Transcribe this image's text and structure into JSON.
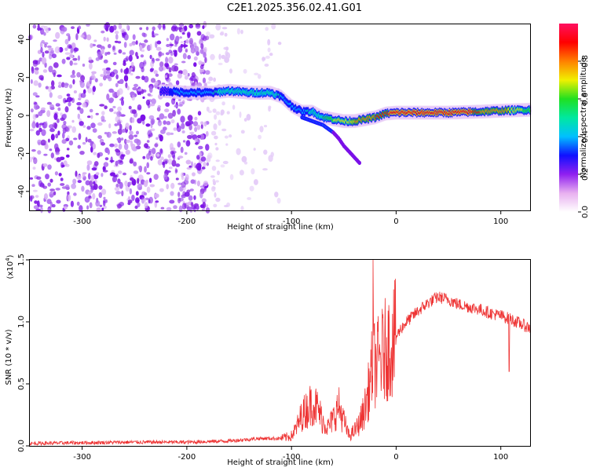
{
  "title": "C2E1.2025.356.02.41.G01",
  "chart_data": [
    {
      "type": "heatmap",
      "name": "spectrogram",
      "xlabel": "Height of straight line (km)",
      "ylabel": "Frequency (Hz)",
      "xlim": [
        -350,
        128
      ],
      "ylim": [
        -50,
        48
      ],
      "xticks": [
        -300,
        -200,
        -100,
        0,
        100
      ],
      "xtick_labels": [
        "-300",
        "-200",
        "-100",
        "0",
        "100"
      ],
      "yticks": [
        -40,
        -20,
        0,
        20,
        40
      ],
      "ytick_labels": [
        "-40",
        "-20",
        "0",
        "20",
        "40"
      ],
      "colorbar": {
        "label": "Normalized spectral amplitude",
        "range": [
          0,
          1
        ],
        "ticks": [
          0.0,
          0.2,
          0.4,
          0.6,
          0.8
        ],
        "tick_labels": [
          "0.0",
          "0.2",
          "0.4",
          "0.6",
          "0.8"
        ],
        "colors": [
          "#ffffff",
          "#e8b0f0",
          "#9020f0",
          "#1010ff",
          "#00c0ff",
          "#00e8a0",
          "#20e020",
          "#f0f000",
          "#ff8000",
          "#ff0000",
          "#ff1060"
        ]
      },
      "signal_track": {
        "x": [
          -225,
          -200,
          -175,
          -160,
          -140,
          -120,
          -110,
          -100,
          -90,
          -80,
          -70,
          -60,
          -50,
          -40,
          -30,
          -20,
          -10,
          0,
          20,
          50,
          80,
          100,
          128
        ],
        "frequency": [
          13,
          12,
          12,
          13,
          12,
          12,
          10,
          5,
          2,
          2,
          -1,
          -2,
          -3,
          -3,
          -2,
          -1,
          1,
          1.5,
          1.5,
          1.5,
          2,
          2.5,
          3
        ],
        "amplitude": [
          0.3,
          0.4,
          0.45,
          0.5,
          0.5,
          0.5,
          0.45,
          0.35,
          0.4,
          0.5,
          0.55,
          0.65,
          0.7,
          0.75,
          0.8,
          0.85,
          0.85,
          0.9,
          0.92,
          0.92,
          0.85,
          0.8,
          0.6
        ]
      },
      "branch_track": {
        "x": [
          -90,
          -80,
          -70,
          -60,
          -55,
          -50,
          -40,
          -35
        ],
        "frequency": [
          -1,
          -3,
          -5,
          -9,
          -12,
          -16,
          -22,
          -25
        ]
      },
      "noise_region_x": [
        -350,
        -110
      ]
    },
    {
      "type": "line",
      "name": "snr",
      "xlabel": "Height of straight line (km)",
      "ylabel": "SNR (10 * v/v)",
      "scale_label": "(x10",
      "scale_exponent": "4",
      "xlim": [
        -350,
        128
      ],
      "ylim": [
        0,
        1.5
      ],
      "xticks": [
        -300,
        -200,
        -100,
        0,
        100
      ],
      "xtick_labels": [
        "-300",
        "-200",
        "-100",
        "0",
        "100"
      ],
      "yticks": [
        0.0,
        0.5,
        1.0,
        1.5
      ],
      "ytick_labels": [
        "0.0",
        "0.5",
        "1.0",
        "1.5"
      ],
      "color": "#ee3333",
      "series": [
        {
          "name": "SNR",
          "x": [
            -350,
            -300,
            -250,
            -200,
            -160,
            -130,
            -110,
            -100,
            -95,
            -90,
            -85,
            -80,
            -75,
            -70,
            -65,
            -60,
            -55,
            -50,
            -45,
            -40,
            -35,
            -30,
            -25,
            -22,
            -20,
            -15,
            -10,
            -5,
            0,
            5,
            10,
            20,
            30,
            40,
            50,
            60,
            70,
            80,
            90,
            100,
            110,
            115,
            120,
            128
          ],
          "y": [
            0.02,
            0.025,
            0.03,
            0.03,
            0.04,
            0.06,
            0.06,
            0.08,
            0.15,
            0.25,
            0.3,
            0.35,
            0.3,
            0.2,
            0.15,
            0.22,
            0.32,
            0.2,
            0.08,
            0.12,
            0.18,
            0.3,
            0.5,
            0.7,
            0.65,
            0.7,
            0.78,
            0.82,
            0.88,
            0.95,
            1.0,
            1.08,
            1.15,
            1.2,
            1.18,
            1.14,
            1.12,
            1.1,
            1.07,
            1.05,
            1.02,
            1.0,
            0.98,
            0.95
          ]
        }
      ],
      "spikes": [
        {
          "x": -22,
          "y": 1.5
        },
        {
          "x": 108,
          "y": 0.6
        }
      ]
    }
  ]
}
